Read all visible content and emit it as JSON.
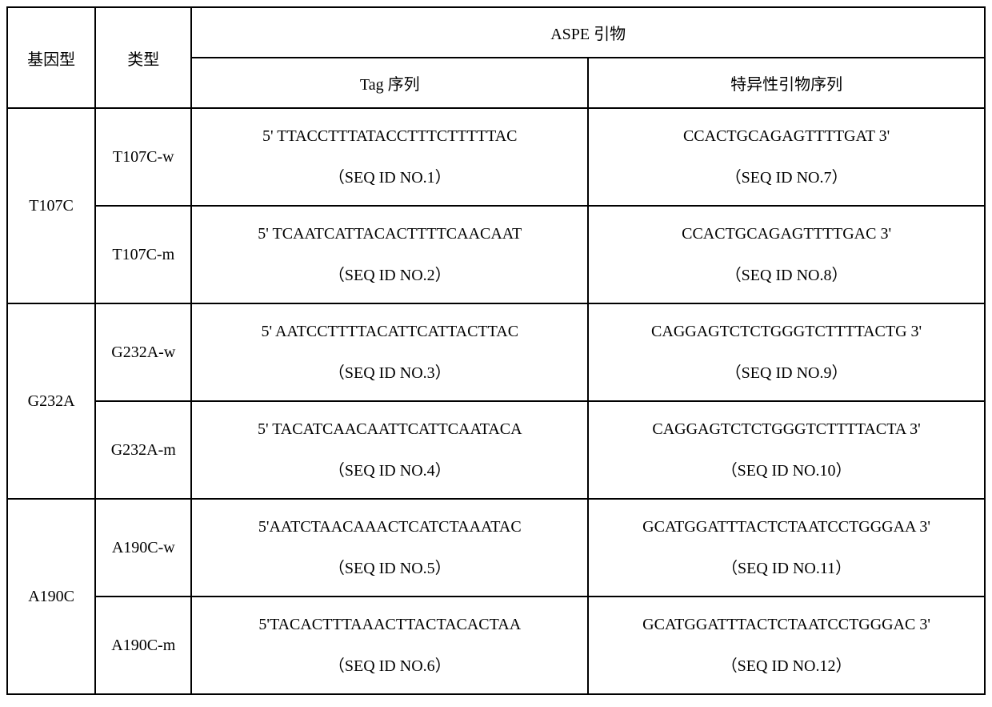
{
  "table": {
    "headers": {
      "genotype": "基因型",
      "type": "类型",
      "aspe_primer": "ASPE 引物",
      "tag_sequence": "Tag 序列",
      "specific_primer": "特异性引物序列"
    },
    "rows": [
      {
        "genotype": "T107C",
        "variants": [
          {
            "type": "T107C-w",
            "tag_seq": "5' TTACCTTTATACCTTTCTTTTTAC",
            "tag_id": "（SEQ ID NO.1）",
            "specific_seq": "CCACTGCAGAGTTTTGAT 3'",
            "specific_id": "（SEQ ID NO.7）"
          },
          {
            "type": "T107C-m",
            "tag_seq": "5' TCAATCATTACACTTTTCAACAAT",
            "tag_id": "（SEQ ID NO.2）",
            "specific_seq": "CCACTGCAGAGTTTTGAC 3'",
            "specific_id": "（SEQ ID NO.8）"
          }
        ]
      },
      {
        "genotype": "G232A",
        "variants": [
          {
            "type": "G232A-w",
            "tag_seq": "5' AATCCTTTTACATTCATTACTTAC",
            "tag_id": "（SEQ ID NO.3）",
            "specific_seq": "CAGGAGTCTCTGGGTCTTTTACTG 3'",
            "specific_id": "（SEQ ID NO.9）"
          },
          {
            "type": "G232A-m",
            "tag_seq": "5' TACATCAACAATTCATTCAATACA",
            "tag_id": "（SEQ ID NO.4）",
            "specific_seq": "CAGGAGTCTCTGGGTCTTTTACTA 3'",
            "specific_id": "（SEQ ID NO.10）"
          }
        ]
      },
      {
        "genotype": "A190C",
        "variants": [
          {
            "type": "A190C-w",
            "tag_seq": "5'AATCTAACAAACTCATCTAAATAC",
            "tag_id": "（SEQ ID NO.5）",
            "specific_seq": "GCATGGATTTACTCTAATCCTGGGAA 3'",
            "specific_id": "（SEQ ID NO.11）"
          },
          {
            "type": "A190C-m",
            "tag_seq": "5'TACACTTTAAACTTACTACACTAA",
            "tag_id": "（SEQ ID NO.6）",
            "specific_seq": "GCATGGATTTACTCTAATCCTGGGAC 3'",
            "specific_id": "（SEQ ID NO.12）"
          }
        ]
      }
    ]
  },
  "styling": {
    "border_color": "#000000",
    "border_width": 2,
    "background_color": "#ffffff",
    "text_color": "#000000",
    "font_family": "SimSun",
    "font_size": 20,
    "col_widths": {
      "genotype": 110,
      "type": 120,
      "tag": 495,
      "specific": 495
    }
  }
}
